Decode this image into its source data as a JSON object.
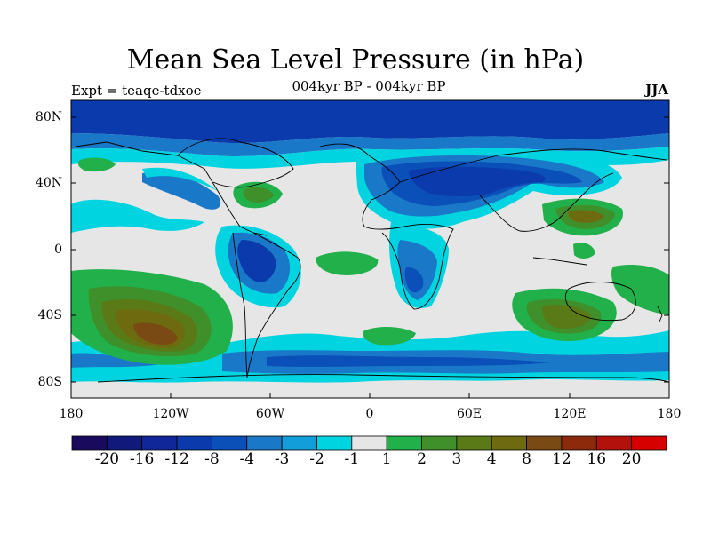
{
  "title": "Mean Sea Level Pressure (in hPa)",
  "subtitle": "004kyr BP - 004kyr BP",
  "experiment_label": "Expt = teaqe-tdxoe",
  "season": "JJA",
  "lat_labels": [
    "80N",
    "40N",
    "0",
    "40S",
    "80S"
  ],
  "lon_labels": [
    "180",
    "120W",
    "60W",
    "0",
    "60E",
    "120E",
    "180"
  ],
  "colorbar": {
    "colors": [
      "#1a0a5e",
      "#111a7a",
      "#10279a",
      "#0a3aab",
      "#0b4fb8",
      "#1a78c8",
      "#129ed8",
      "#00d4e0",
      "#e6e6e6",
      "#22b04a",
      "#3f8f2a",
      "#5a7a18",
      "#6e6a10",
      "#7a4a14",
      "#8e2a0c",
      "#b3120c",
      "#d60000"
    ],
    "labels": [
      "-20",
      "-16",
      "-12",
      "-8",
      "-4",
      "-3",
      "-2",
      "-1",
      "1",
      "2",
      "3",
      "4",
      "8",
      "12",
      "16",
      "20"
    ]
  }
}
